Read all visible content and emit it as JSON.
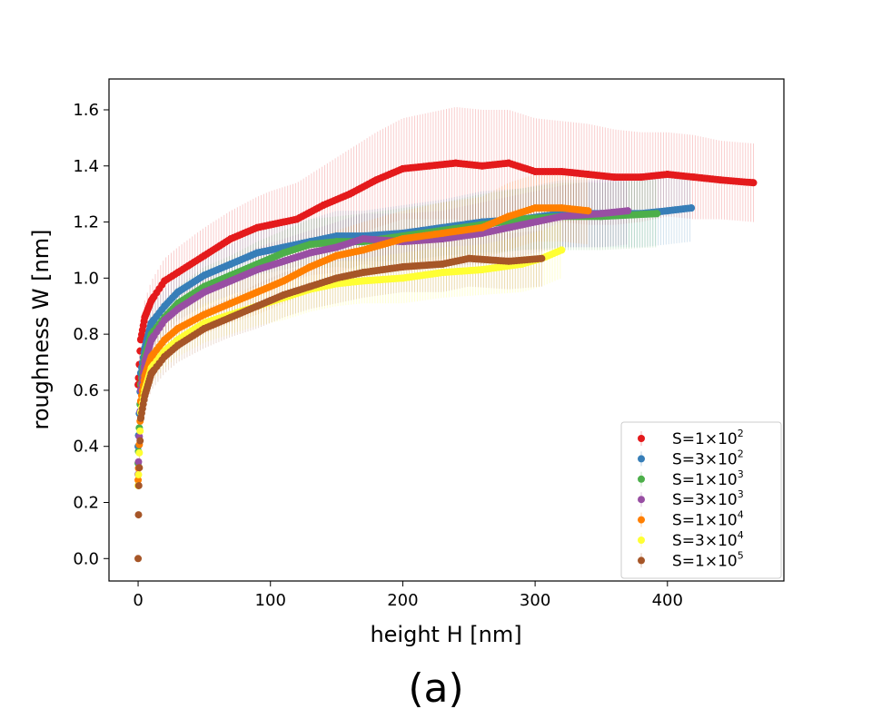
{
  "chart_data": {
    "type": "scatter",
    "xlabel": "height H [nm]",
    "ylabel": "roughness W [nm]",
    "panel_label": "(a)",
    "xlim": [
      -22,
      488
    ],
    "ylim": [
      -0.08,
      1.71
    ],
    "xticks": [
      0,
      100,
      200,
      300,
      400
    ],
    "xtick_labels": [
      "0",
      "100",
      "200",
      "300",
      "400"
    ],
    "yticks": [
      0.0,
      0.2,
      0.4,
      0.6,
      0.8,
      1.0,
      1.2,
      1.4,
      1.6
    ],
    "ytick_labels": [
      "0.0",
      "0.2",
      "0.4",
      "0.6",
      "0.8",
      "1.0",
      "1.2",
      "1.4",
      "1.6"
    ],
    "grid": false,
    "error_bars": true,
    "legend_position": "bottom-right",
    "series": [
      {
        "name": "S=1×10",
        "exponent": "2",
        "color": "#e41a1c",
        "x": [
          0,
          2,
          5,
          10,
          20,
          30,
          50,
          70,
          90,
          100,
          120,
          140,
          160,
          180,
          200,
          220,
          240,
          260,
          280,
          300,
          320,
          340,
          360,
          380,
          400,
          420,
          440,
          465
        ],
        "y": [
          0.62,
          0.78,
          0.86,
          0.92,
          0.99,
          1.02,
          1.08,
          1.14,
          1.18,
          1.19,
          1.21,
          1.26,
          1.3,
          1.35,
          1.39,
          1.4,
          1.41,
          1.4,
          1.41,
          1.38,
          1.38,
          1.37,
          1.36,
          1.36,
          1.37,
          1.36,
          1.35,
          1.34
        ],
        "err": [
          0.05,
          0.06,
          0.06,
          0.07,
          0.08,
          0.09,
          0.1,
          0.1,
          0.11,
          0.12,
          0.13,
          0.14,
          0.16,
          0.17,
          0.18,
          0.19,
          0.2,
          0.2,
          0.19,
          0.19,
          0.18,
          0.18,
          0.17,
          0.16,
          0.15,
          0.15,
          0.14,
          0.14
        ]
      },
      {
        "name": "S=3×10",
        "exponent": "2",
        "color": "#377eb8",
        "x": [
          0,
          2,
          5,
          10,
          20,
          30,
          50,
          70,
          90,
          110,
          130,
          150,
          170,
          200,
          230,
          260,
          290,
          320,
          350,
          380,
          400,
          418
        ],
        "y": [
          0.4,
          0.66,
          0.75,
          0.84,
          0.9,
          0.95,
          1.01,
          1.05,
          1.09,
          1.11,
          1.13,
          1.15,
          1.15,
          1.16,
          1.18,
          1.2,
          1.21,
          1.23,
          1.23,
          1.23,
          1.24,
          1.25
        ],
        "err": [
          0.04,
          0.05,
          0.05,
          0.06,
          0.06,
          0.07,
          0.07,
          0.07,
          0.08,
          0.08,
          0.08,
          0.09,
          0.09,
          0.1,
          0.1,
          0.11,
          0.11,
          0.12,
          0.12,
          0.12,
          0.12,
          0.12
        ]
      },
      {
        "name": "S=1×10",
        "exponent": "3",
        "color": "#4daf4a",
        "x": [
          0,
          2,
          5,
          10,
          20,
          30,
          50,
          70,
          90,
          110,
          130,
          150,
          170,
          200,
          230,
          260,
          290,
          320,
          350,
          392
        ],
        "y": [
          0.34,
          0.62,
          0.72,
          0.8,
          0.86,
          0.91,
          0.97,
          1.01,
          1.05,
          1.09,
          1.12,
          1.13,
          1.13,
          1.15,
          1.17,
          1.19,
          1.21,
          1.22,
          1.22,
          1.23
        ],
        "err": [
          0.04,
          0.05,
          0.05,
          0.06,
          0.06,
          0.06,
          0.07,
          0.07,
          0.08,
          0.08,
          0.09,
          0.09,
          0.1,
          0.1,
          0.1,
          0.11,
          0.11,
          0.12,
          0.12,
          0.12
        ]
      },
      {
        "name": "S=3×10",
        "exponent": "3",
        "color": "#984ea3",
        "x": [
          0,
          2,
          5,
          10,
          20,
          30,
          50,
          70,
          90,
          110,
          130,
          150,
          170,
          200,
          230,
          260,
          290,
          320,
          350,
          370
        ],
        "y": [
          0.3,
          0.6,
          0.7,
          0.78,
          0.85,
          0.89,
          0.95,
          0.99,
          1.03,
          1.06,
          1.09,
          1.11,
          1.14,
          1.13,
          1.14,
          1.16,
          1.19,
          1.22,
          1.23,
          1.24
        ],
        "err": [
          0.04,
          0.05,
          0.05,
          0.06,
          0.06,
          0.06,
          0.07,
          0.07,
          0.08,
          0.08,
          0.08,
          0.09,
          0.09,
          0.1,
          0.1,
          0.11,
          0.11,
          0.11,
          0.12,
          0.12
        ]
      },
      {
        "name": "S=1×10",
        "exponent": "4",
        "color": "#ff7f00",
        "x": [
          0,
          2,
          5,
          10,
          20,
          30,
          50,
          70,
          90,
          110,
          130,
          150,
          170,
          200,
          230,
          260,
          280,
          300,
          320,
          340
        ],
        "y": [
          0.28,
          0.56,
          0.65,
          0.72,
          0.78,
          0.82,
          0.87,
          0.91,
          0.95,
          0.99,
          1.04,
          1.08,
          1.1,
          1.14,
          1.16,
          1.18,
          1.22,
          1.25,
          1.25,
          1.24
        ],
        "err": [
          0.04,
          0.05,
          0.05,
          0.06,
          0.06,
          0.07,
          0.07,
          0.07,
          0.08,
          0.08,
          0.09,
          0.09,
          0.1,
          0.1,
          0.11,
          0.11,
          0.12,
          0.12,
          0.12,
          0.12
        ]
      },
      {
        "name": "S=3×10",
        "exponent": "4",
        "color": "#ffff33",
        "x": [
          0,
          2,
          5,
          10,
          20,
          30,
          50,
          70,
          90,
          110,
          130,
          150,
          170,
          200,
          230,
          260,
          290,
          305,
          320
        ],
        "y": [
          0.26,
          0.52,
          0.6,
          0.68,
          0.74,
          0.78,
          0.84,
          0.87,
          0.9,
          0.93,
          0.96,
          0.98,
          0.99,
          1.0,
          1.02,
          1.03,
          1.05,
          1.07,
          1.1
        ],
        "err": [
          0.04,
          0.05,
          0.05,
          0.06,
          0.06,
          0.06,
          0.07,
          0.07,
          0.07,
          0.08,
          0.08,
          0.08,
          0.08,
          0.09,
          0.09,
          0.09,
          0.1,
          0.1,
          0.1
        ]
      },
      {
        "name": "S=1×10",
        "exponent": "5",
        "color": "#a65628",
        "x": [
          0,
          0.5,
          2,
          5,
          10,
          20,
          30,
          50,
          70,
          90,
          110,
          130,
          150,
          170,
          200,
          230,
          250,
          280,
          305
        ],
        "y": [
          0.0,
          0.26,
          0.5,
          0.58,
          0.66,
          0.72,
          0.76,
          0.82,
          0.86,
          0.9,
          0.94,
          0.97,
          1.0,
          1.02,
          1.04,
          1.05,
          1.07,
          1.06,
          1.07
        ],
        "err": [
          0.0,
          0.04,
          0.05,
          0.05,
          0.06,
          0.06,
          0.06,
          0.07,
          0.07,
          0.08,
          0.08,
          0.08,
          0.09,
          0.09,
          0.09,
          0.1,
          0.1,
          0.1,
          0.1
        ]
      }
    ]
  }
}
